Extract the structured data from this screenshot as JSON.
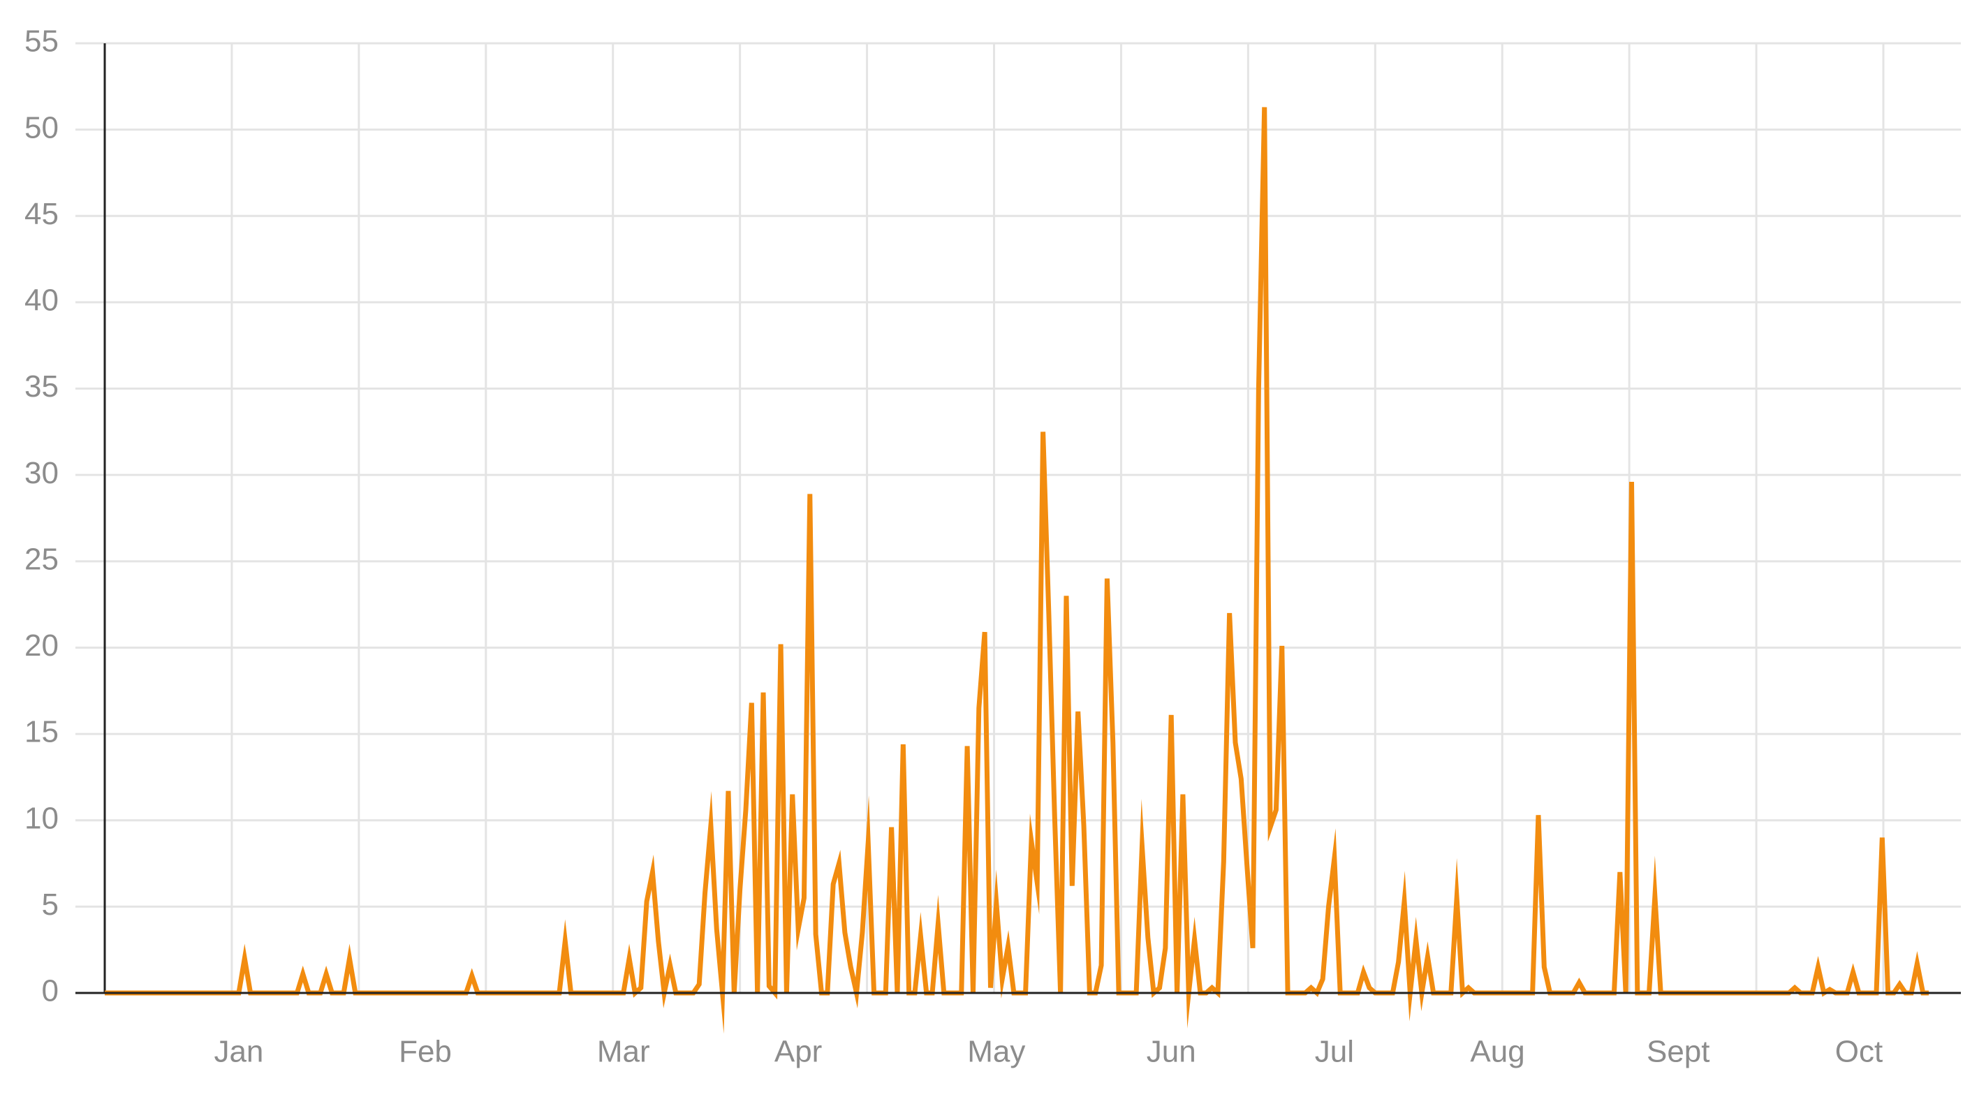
{
  "chart_data": {
    "type": "line",
    "color": "#f28c0f",
    "grid": true,
    "xlim": [
      0,
      318.5
    ],
    "xgrid": [
      21.8,
      43.6,
      65.4,
      87.2,
      109,
      130.8,
      152.6,
      174.4,
      196.2,
      218,
      239.8,
      261.6,
      283.4,
      305.2
    ],
    "xticks": [
      {
        "value": 23,
        "label": "Jan"
      },
      {
        "value": 55,
        "label": "Feb"
      },
      {
        "value": 89,
        "label": "Mar"
      },
      {
        "value": 119,
        "label": "Apr"
      },
      {
        "value": 153,
        "label": "May"
      },
      {
        "value": 183,
        "label": "Jun"
      },
      {
        "value": 211,
        "label": "Jul"
      },
      {
        "value": 239,
        "label": "Aug"
      },
      {
        "value": 270,
        "label": "Sept"
      },
      {
        "value": 301,
        "label": "Oct"
      }
    ],
    "ylim": [
      0,
      55
    ],
    "yticks": [
      0,
      5,
      10,
      15,
      20,
      25,
      30,
      35,
      40,
      45,
      50,
      55
    ],
    "x": [
      0,
      1,
      2,
      3,
      4,
      5,
      6,
      7,
      8,
      9,
      10,
      11,
      12,
      13,
      14,
      15,
      16,
      17,
      18,
      19,
      20,
      21,
      22,
      23,
      24,
      25,
      26,
      27,
      28,
      29,
      30,
      31,
      32,
      33,
      34,
      35,
      36,
      37,
      38,
      39,
      40,
      41,
      42,
      43,
      44,
      45,
      46,
      47,
      48,
      49,
      50,
      51,
      52,
      53,
      54,
      55,
      56,
      57,
      58,
      59,
      60,
      61,
      62,
      63,
      64,
      65,
      66,
      67,
      68,
      69,
      70,
      71,
      72,
      73,
      74,
      75,
      76,
      77,
      78,
      79,
      80,
      81,
      82,
      83,
      84,
      85,
      86,
      87,
      88,
      89,
      90,
      91,
      92,
      93,
      94,
      95,
      96,
      97,
      98,
      99,
      100,
      101,
      102,
      103,
      104,
      105,
      106,
      107,
      108,
      109,
      110,
      111,
      112,
      113,
      114,
      115,
      116,
      117,
      118,
      119,
      120,
      121,
      122,
      123,
      124,
      125,
      126,
      127,
      128,
      129,
      130,
      131,
      132,
      133,
      134,
      135,
      136,
      137,
      138,
      139,
      140,
      141,
      142,
      143,
      144,
      145,
      146,
      147,
      148,
      149,
      150,
      151,
      152,
      153,
      154,
      155,
      156,
      157,
      158,
      159,
      160,
      161,
      162,
      163,
      164,
      165,
      166,
      167,
      168,
      169,
      170,
      171,
      172,
      173,
      174,
      175,
      176,
      177,
      178,
      179,
      180,
      181,
      182,
      183,
      184,
      185,
      186,
      187,
      188,
      189,
      190,
      191,
      192,
      193,
      194,
      195,
      196,
      197,
      198,
      199,
      200,
      201,
      202,
      203,
      204,
      205,
      206,
      207,
      208,
      209,
      210,
      211,
      212,
      213,
      214,
      215,
      216,
      217,
      218,
      219,
      220,
      221,
      222,
      223,
      224,
      225,
      226,
      227,
      228,
      229,
      230,
      231,
      232,
      233,
      234,
      235,
      236,
      237,
      238,
      239,
      240,
      241,
      242,
      243,
      244,
      245,
      246,
      247,
      248,
      249,
      250,
      251,
      252,
      253,
      254,
      255,
      256,
      257,
      258,
      259,
      260,
      261,
      262,
      263,
      264,
      265,
      266,
      267,
      268,
      269,
      270,
      271,
      272,
      273,
      274,
      275,
      276,
      277,
      278,
      279,
      280,
      281,
      282,
      283,
      284,
      285,
      286,
      287,
      288,
      289,
      290,
      291,
      292,
      293,
      294,
      295,
      296,
      297,
      298,
      299,
      300,
      301,
      302,
      303,
      304,
      305,
      306,
      307,
      308,
      309,
      310,
      311,
      312,
      313
    ],
    "values": [
      0,
      0,
      0,
      0,
      0,
      0,
      0,
      0,
      0,
      0,
      0,
      0,
      0,
      0,
      0,
      0,
      0,
      0,
      0,
      0,
      0,
      0,
      0,
      0,
      2,
      0,
      0,
      0,
      0,
      0,
      0,
      0,
      0,
      0,
      1.1,
      0,
      0,
      0,
      1.1,
      0,
      0,
      0,
      2,
      0,
      0,
      0,
      0,
      0,
      0,
      0,
      0,
      0,
      0,
      0,
      0,
      0,
      0,
      0,
      0,
      0,
      0,
      0,
      0,
      1,
      0,
      0,
      0,
      0,
      0,
      0,
      0,
      0,
      0,
      0,
      0,
      0,
      0,
      0,
      0,
      3,
      0,
      0,
      0,
      0,
      0,
      0,
      0,
      0,
      0,
      0,
      2,
      0,
      0.3,
      5.3,
      7,
      3,
      0,
      1.6,
      0,
      0,
      0,
      0,
      0.5,
      5.8,
      9.7,
      3.7,
      0,
      11.7,
      0,
      6,
      10.6,
      16.8,
      0,
      17.4,
      0.4,
      0,
      20.2,
      0,
      11.5,
      3.7,
      5.5,
      28.9,
      3.4,
      0,
      0,
      6.3,
      7.5,
      3.5,
      1.5,
      0,
      3.5,
      8.7,
      0,
      0,
      0,
      9.6,
      0,
      14.4,
      0,
      0,
      3.3,
      0,
      0,
      4,
      0,
      0,
      0,
      0,
      14.3,
      0,
      16.5,
      20.9,
      0.3,
      5.2,
      0.8,
      2.7,
      0,
      0,
      0,
      8.8,
      6.4,
      32.5,
      21.9,
      10.2,
      0,
      23,
      6.2,
      16.3,
      9.7,
      0,
      0,
      1.6,
      24,
      14.5,
      0,
      0,
      0,
      0,
      8.5,
      3.2,
      0,
      0.3,
      2.6,
      16.1,
      0,
      11.5,
      0,
      3.1,
      0,
      0,
      0.3,
      0,
      7.6,
      22,
      14.5,
      12.4,
      7.4,
      2.6,
      35,
      51.3,
      9.6,
      10.6,
      20.1,
      0,
      0,
      0,
      0,
      0.3,
      0,
      0.8,
      5,
      7.8,
      0,
      0,
      0,
      0,
      1.2,
      0.3,
      0,
      0,
      0,
      0,
      1.8,
      5.3,
      0,
      3.1,
      0,
      2.1,
      0,
      0,
      0,
      0,
      5.5,
      0,
      0.3,
      0,
      0,
      0,
      0,
      0,
      0,
      0,
      0,
      0,
      0,
      0,
      10.3,
      1.5,
      0,
      0,
      0,
      0,
      0,
      0.6,
      0,
      0,
      0,
      0,
      0,
      0,
      7,
      0,
      29.6,
      0,
      0,
      0,
      5.6,
      0,
      0,
      0,
      0,
      0,
      0,
      0,
      0,
      0,
      0,
      0,
      0,
      0,
      0,
      0,
      0,
      0,
      0,
      0,
      0,
      0,
      0,
      0,
      0.3,
      0,
      0,
      0,
      1.5,
      0,
      0.2,
      0,
      0,
      0,
      1.2,
      0,
      0,
      0,
      0,
      9,
      0,
      0,
      0.5,
      0,
      0,
      1.7,
      0,
      0
    ]
  }
}
